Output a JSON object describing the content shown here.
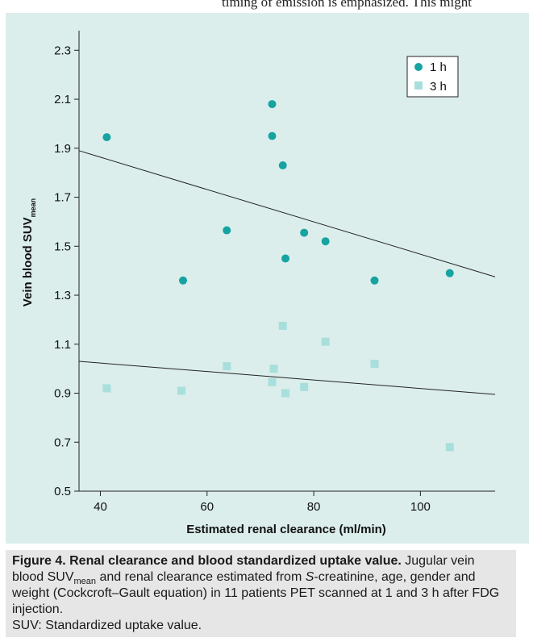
{
  "page": {
    "top_text": "timing of emission is emphasized. This might"
  },
  "chart_data": {
    "type": "scatter",
    "xlabel": "Estimated renal clearance (ml/min)",
    "ylabel_main": "Vein blood SUV",
    "ylabel_sub": "mean",
    "xlim": [
      36,
      114
    ],
    "ylim": [
      0.5,
      2.38
    ],
    "x_ticks": [
      40,
      60,
      80,
      100
    ],
    "y_ticks": [
      0.5,
      0.7,
      0.9,
      1.1,
      1.3,
      1.5,
      1.7,
      1.9,
      2.1,
      2.3
    ],
    "y_tick_labels": [
      "0.5",
      "0.7",
      "0.9",
      "1.1",
      "1.3",
      "1.5",
      "1.7",
      "1.9",
      "2.1",
      "2.3"
    ],
    "legend_position": "top-right",
    "series": [
      {
        "name": "1 h",
        "marker": "circle",
        "color": "#16a3a1",
        "points": [
          [
            41.2,
            1.945
          ],
          [
            55.5,
            1.36
          ],
          [
            63.7,
            1.565
          ],
          [
            72.2,
            2.08
          ],
          [
            72.2,
            1.95
          ],
          [
            74.2,
            1.83
          ],
          [
            74.7,
            1.45
          ],
          [
            78.2,
            1.555
          ],
          [
            82.2,
            1.52
          ],
          [
            91.4,
            1.36
          ],
          [
            105.5,
            1.39
          ]
        ],
        "trend": [
          [
            36,
            1.89
          ],
          [
            114,
            1.375
          ]
        ]
      },
      {
        "name": "3 h",
        "marker": "square",
        "color": "#a8dfdc",
        "points": [
          [
            41.2,
            0.92
          ],
          [
            55.2,
            0.91
          ],
          [
            63.7,
            1.01
          ],
          [
            72.2,
            0.945
          ],
          [
            72.5,
            1.0
          ],
          [
            74.2,
            1.175
          ],
          [
            74.7,
            0.9
          ],
          [
            78.2,
            0.925
          ],
          [
            82.2,
            1.11
          ],
          [
            91.4,
            1.02
          ],
          [
            105.5,
            0.68
          ]
        ],
        "trend": [
          [
            36,
            1.03
          ],
          [
            114,
            0.895
          ]
        ]
      }
    ]
  },
  "caption": {
    "figure_label": "Figure 4. Renal clearance and blood standardized uptake value.",
    "text_1": " Jugular vein blood SUV",
    "sub": "mean",
    "text_2": " and renal clearance estimated from ",
    "italic": "S",
    "text_3": "-creatinine, age, gender and weight (Cockcroft–Gault equation) in 11 patients PET scanned at 1 and 3 h after FDG injection.",
    "abbrev": "SUV: Standardized uptake value."
  }
}
